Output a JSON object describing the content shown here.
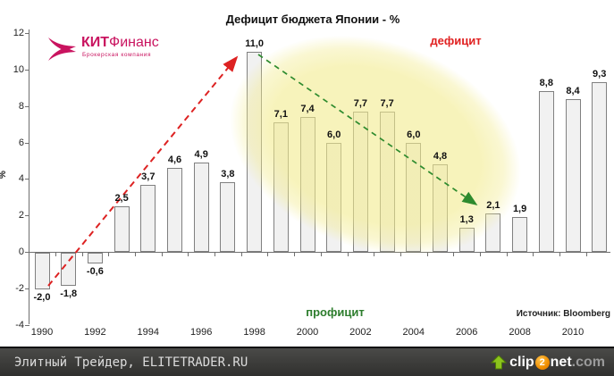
{
  "title": "Дефицит бюджета Японии - %",
  "logo": {
    "brand_bold": "КИТ",
    "brand_rest": "Финанс",
    "subtitle": "Брокерская компания",
    "color": "#c9135f"
  },
  "annotations": {
    "deficit_label": "дефицит",
    "deficit_color": "#e02020",
    "surplus_label": "профицит",
    "surplus_color": "#2d7d2d",
    "source": "Источник: Bloomberg"
  },
  "chart_data": {
    "type": "bar",
    "categories": [
      "1990",
      "1991",
      "1992",
      "1993",
      "1994",
      "1995",
      "1996",
      "1997",
      "1998",
      "1999",
      "2000",
      "2001",
      "2002",
      "2003",
      "2004",
      "2005",
      "2006",
      "2007",
      "2008",
      "2009",
      "2010",
      "2011"
    ],
    "values": [
      -2.0,
      -1.8,
      -0.6,
      2.5,
      3.7,
      4.6,
      4.9,
      3.8,
      11.0,
      7.1,
      7.4,
      6.0,
      7.7,
      7.7,
      6.0,
      4.8,
      1.3,
      2.1,
      1.9,
      8.8,
      8.4,
      9.3
    ],
    "value_labels": [
      "-2,0",
      "-1,8",
      "-0,6",
      "2,5",
      "3,7",
      "4,6",
      "4,9",
      "3,8",
      "11,0",
      "7,1",
      "7,4",
      "6,0",
      "7,7",
      "7,7",
      "6,0",
      "4,8",
      "1,3",
      "2,1",
      "1,9",
      "8,8",
      "8,4",
      "9,3"
    ],
    "x_tick_labels": [
      "1990",
      "1992",
      "1994",
      "1996",
      "1998",
      "2000",
      "2002",
      "2004",
      "2006",
      "2008",
      "2010"
    ],
    "y_ticks": [
      -4,
      -2,
      0,
      2,
      4,
      6,
      8,
      10,
      12
    ],
    "ylim": [
      -4,
      12
    ],
    "ylabel": "%",
    "grid": false,
    "legend": "none",
    "bar_color": "#f1f1f1",
    "bar_border_color": "#808080",
    "highlight_color": "#f2eb8e",
    "arrow_up_color": "#dd2222",
    "arrow_down_color": "#2e8b2e"
  },
  "footer": {
    "left_text": "Элитный Трейдер, ELITETRADER.RU",
    "brand_clip": "clip",
    "brand_two": "2",
    "brand_net": "net",
    "brand_com": ".com"
  }
}
